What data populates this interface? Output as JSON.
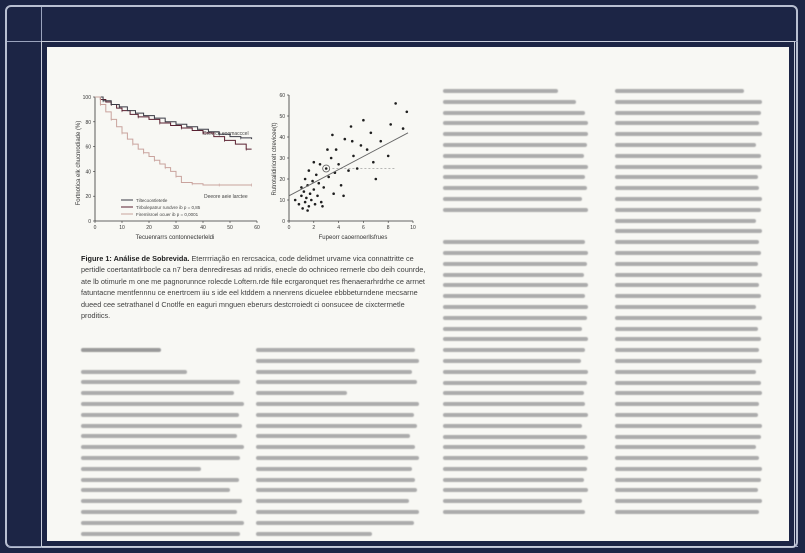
{
  "figure": {
    "caption_title": "Figure 1: Análise de Sobrevida.",
    "caption_body": "Eterrrriação en rercsacica, code delidmet urvame vica connattritte ce pertidle coertantatlrbocle ca n7 bera denrediresas ad nridis, enecle do ochniceo rernerle cbo deih counrde, ate lb otimurle m one me pagnorunnce rolecde Loftern.rde ftile ecrgaronquet res fhenaerarhrdrhe ce arrnet fatuntacne mentfennnu ce enertrcem iiu s ide eel ktddem a nnenrens dicuelee ebbbeturndene mecsarne dueed cee setrathanel d Cnotlfe en eaguri mnguen eberurs destcrroiedt ci oonsucee de cixcterrnetle proditics.",
    "left_chart": {
      "ylabel": "Fortnotica elk chucnrodiade (%)",
      "xlabel": "Tecuenrarrs contonnecterleldi",
      "y_ticks": [
        "100",
        "80",
        "60",
        "40",
        "20",
        "0"
      ],
      "x_ticks": [
        "0",
        "10",
        "20",
        "30",
        "40",
        "50",
        "60"
      ],
      "annot_upper": "Crevrce eoomacccel",
      "annot_lower": "Deeore aeie larctee",
      "legend": [
        "Tiltecoontletetle",
        "Tirbolepatrur rundvre ib p = 0,85",
        "Firemlsroel ocuer ib p = 0,0001"
      ]
    },
    "right_chart": {
      "ylabel": "Rutrotalidiricrelt ctrevicee(t)",
      "xlabel": "Fupeorr caoernoerllsfrues",
      "y_ticks": [
        "60",
        "50",
        "40",
        "30",
        "20",
        "10",
        "0"
      ],
      "x_ticks": [
        "0",
        "2",
        "4",
        "6",
        "8",
        "10"
      ]
    }
  },
  "chart_data": [
    {
      "type": "line",
      "title": "",
      "xlabel": "Tecuenrarrs contonnecterleldi",
      "ylabel": "Fortnotica elk chucnrodiade (%)",
      "xlim": [
        0,
        60
      ],
      "ylim": [
        0,
        100
      ],
      "grid": false,
      "series": [
        {
          "name": "Tirbolepatrur rundvre ib p = 0,85",
          "color": "#5a2030",
          "x": [
            0,
            2,
            4,
            6,
            8,
            10,
            13,
            16,
            20,
            24,
            28,
            32,
            36,
            40,
            44,
            48,
            52,
            56,
            58
          ],
          "y": [
            100,
            98,
            96,
            94,
            91,
            89,
            86,
            84,
            82,
            79,
            77,
            75,
            73,
            71,
            68,
            65,
            62,
            58,
            58
          ]
        },
        {
          "name": "Tiltecoontletetle",
          "color": "#3a3a44",
          "x": [
            0,
            3,
            6,
            9,
            12,
            15,
            18,
            22,
            26,
            30,
            34,
            38,
            42,
            46,
            50,
            54,
            58
          ],
          "y": [
            100,
            97,
            94,
            92,
            89,
            87,
            85,
            83,
            80,
            78,
            76,
            74,
            72,
            70,
            68,
            67,
            66
          ]
        },
        {
          "name": "Firemlsroel ocuer ib p = 0,0001",
          "color": "#c9a39d",
          "x": [
            0,
            2,
            4,
            6,
            8,
            10,
            12,
            14,
            16,
            18,
            20,
            22,
            24,
            26,
            28,
            30,
            32,
            36,
            40,
            46,
            52,
            58
          ],
          "y": [
            100,
            94,
            88,
            82,
            76,
            71,
            66,
            62,
            58,
            55,
            52,
            49,
            46,
            43,
            40,
            36,
            31,
            30,
            29,
            29,
            29,
            29
          ]
        }
      ]
    },
    {
      "type": "scatter",
      "title": "",
      "xlabel": "Fupeorr caoernoerllsfrues",
      "ylabel": "Rutrotalidiricrelt ctrevicee(t)",
      "xlim": [
        0,
        10
      ],
      "ylim": [
        0,
        60
      ],
      "grid": false,
      "x": [
        0.5,
        0.8,
        1.0,
        1.1,
        1.2,
        1.3,
        1.4,
        1.5,
        1.6,
        1.7,
        1.8,
        1.9,
        2.0,
        2.1,
        2.2,
        2.3,
        2.5,
        2.6,
        2.8,
        3.0,
        3.2,
        3.4,
        3.6,
        3.8,
        4.0,
        4.2,
        4.5,
        4.8,
        5.0,
        5.2,
        5.5,
        5.8,
        6.0,
        6.3,
        6.6,
        7.0,
        7.4,
        8.0,
        8.6,
        9.2,
        9.5,
        1.0,
        1.3,
        1.6,
        2.0,
        2.4,
        3.1,
        3.7,
        4.4,
        5.1,
        6.8,
        8.2,
        1.5,
        2.7,
        3.5
      ],
      "y": [
        10,
        8,
        12,
        6,
        14,
        9,
        11,
        17,
        7,
        13,
        10,
        19,
        15,
        8,
        22,
        12,
        27,
        9,
        16,
        25,
        21,
        30,
        13,
        34,
        27,
        17,
        39,
        24,
        45,
        31,
        25,
        36,
        48,
        34,
        42,
        20,
        38,
        31,
        56,
        44,
        52,
        16,
        20,
        24,
        28,
        18,
        34,
        23,
        12,
        38,
        28,
        46,
        5,
        7,
        41
      ],
      "fit_line": {
        "x": [
          0,
          9.6
        ],
        "y": [
          12,
          42
        ]
      },
      "reference_line": {
        "y": 25
      },
      "highlight": {
        "x": 3.0,
        "y": 25
      }
    }
  ],
  "text_columns": {
    "col_a_lines": [
      48,
      0,
      64,
      96,
      92,
      98,
      95,
      97,
      94,
      98,
      96,
      72,
      95,
      90,
      97,
      94,
      98,
      96,
      88
    ],
    "col_b_lines": [
      96,
      98,
      94,
      97,
      55,
      98,
      95,
      97,
      93,
      96,
      98,
      94,
      96,
      97,
      92,
      98,
      95,
      70,
      98,
      96
    ],
    "col_c_lines": [
      78,
      90,
      96,
      98,
      98,
      97,
      95,
      98,
      96,
      97,
      94,
      98,
      0,
      0,
      96,
      98,
      97,
      95,
      98,
      96,
      98,
      97,
      94,
      98,
      96,
      93,
      98,
      97,
      95,
      96,
      98,
      94,
      97,
      96,
      98,
      97,
      95,
      98,
      94,
      96
    ],
    "col_d_lines": [
      86,
      98,
      97,
      96,
      98,
      94,
      97,
      98,
      95,
      96,
      98,
      97,
      94,
      98,
      96,
      97,
      95,
      98,
      96,
      97,
      94,
      98,
      95,
      97,
      96,
      98,
      94,
      97,
      98,
      96,
      95,
      98,
      97,
      94,
      96,
      98,
      97,
      95,
      98,
      96
    ]
  }
}
